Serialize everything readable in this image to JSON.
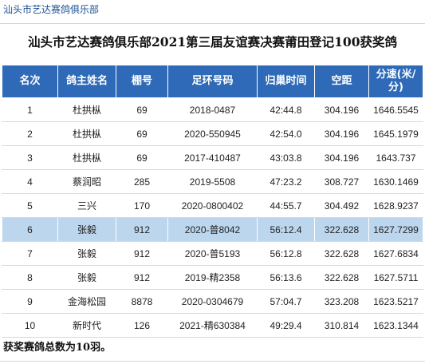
{
  "club_tag": "汕头市艺达赛鸽俱乐部",
  "title": "汕头市艺达赛鸽俱乐部2021第三届友谊赛决赛莆田登记100获奖鸽",
  "table": {
    "headers": [
      "名次",
      "鸽主姓名",
      "棚号",
      "足环号码",
      "归巢时间",
      "空距",
      "分速(米/分)"
    ],
    "rows": [
      [
        "1",
        "杜拱枞",
        "69",
        "2018-0487",
        "42:44.8",
        "304.196",
        "1646.5545"
      ],
      [
        "2",
        "杜拱枞",
        "69",
        "2020-550945",
        "42:54.0",
        "304.196",
        "1645.1979"
      ],
      [
        "3",
        "杜拱枞",
        "69",
        "2017-410487",
        "43:03.8",
        "304.196",
        "1643.737"
      ],
      [
        "4",
        "蔡润昭",
        "285",
        "2019-5508",
        "47:23.2",
        "308.727",
        "1630.1469"
      ],
      [
        "5",
        "三兴",
        "170",
        "2020-0800402",
        "44:55.7",
        "304.492",
        "1628.9237"
      ],
      [
        "6",
        "张毅",
        "912",
        "2020-普8042",
        "56:12.4",
        "322.628",
        "1627.7299"
      ],
      [
        "7",
        "张毅",
        "912",
        "2020-普5193",
        "56:12.8",
        "322.628",
        "1627.6834"
      ],
      [
        "8",
        "张毅",
        "912",
        "2019-精2358",
        "56:13.6",
        "322.628",
        "1627.5711"
      ],
      [
        "9",
        "金海松园",
        "8878",
        "2020-0304679",
        "57:04.7",
        "323.208",
        "1623.5217"
      ],
      [
        "10",
        "新时代",
        "126",
        "2021-精630384",
        "49:29.4",
        "310.814",
        "1623.1344"
      ]
    ],
    "highlighted_row": 6
  },
  "summary": "获奖赛鸽总数为10羽。",
  "colors": {
    "header_bg": "#2e6ab7",
    "highlight_row_bg": "#bcd6ee",
    "club_tag_text": "#1b4f8f"
  }
}
